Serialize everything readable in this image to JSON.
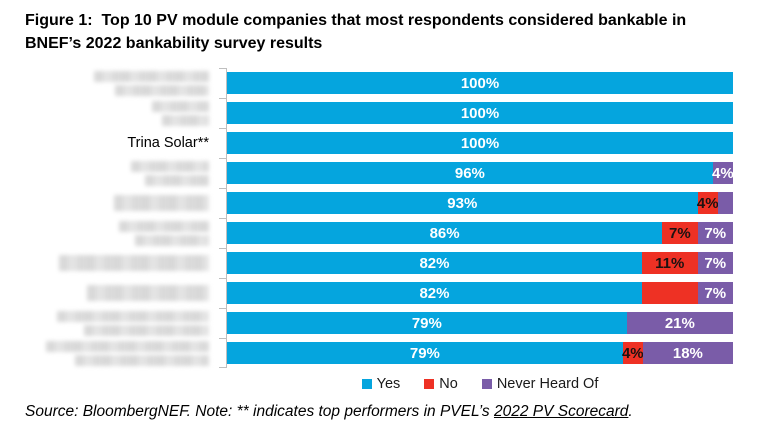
{
  "figure": {
    "title_line1": "Figure 1:  Top 10 PV module companies that most respondents considered bankable in",
    "title_line2": "BNEF’s 2022 bankability survey results"
  },
  "chart_data": {
    "type": "bar",
    "orientation": "horizontal",
    "stacked": true,
    "unit": "percent",
    "x_range": [
      0,
      100
    ],
    "grid": false,
    "legend_position": "bottom",
    "series_names": [
      "Yes",
      "No",
      "Never Heard Of"
    ],
    "colors": {
      "yes": "#05A5DE",
      "no": "#EE3124",
      "nho": "#7A5CA8"
    },
    "legend": [
      {
        "key": "yes",
        "label": "Yes"
      },
      {
        "key": "no",
        "label": "No"
      },
      {
        "key": "nho",
        "label": "Never Heard Of"
      }
    ],
    "rows": [
      {
        "company": "",
        "redacted": true,
        "redact_width": 115,
        "redact_lines": 2,
        "segments": [
          {
            "key": "yes",
            "value": 100,
            "label": "100%"
          }
        ]
      },
      {
        "company": "",
        "redacted": true,
        "redact_width": 57,
        "redact_lines": 2,
        "segments": [
          {
            "key": "yes",
            "value": 100,
            "label": "100%"
          }
        ]
      },
      {
        "company": "Trina Solar**",
        "redacted": false,
        "segments": [
          {
            "key": "yes",
            "value": 100,
            "label": "100%"
          }
        ]
      },
      {
        "company": "",
        "redacted": true,
        "redact_width": 78,
        "redact_lines": 2,
        "segments": [
          {
            "key": "yes",
            "value": 96,
            "label": "96%"
          },
          {
            "key": "nho",
            "value": 4,
            "label": "4%"
          }
        ]
      },
      {
        "company": "",
        "redacted": true,
        "redact_width": 95,
        "redact_lines": 1,
        "segments": [
          {
            "key": "yes",
            "value": 93,
            "label": "93%"
          },
          {
            "key": "no",
            "value": 4,
            "label": "4%"
          },
          {
            "key": "nho",
            "value": 3,
            "label": ""
          }
        ]
      },
      {
        "company": "",
        "redacted": true,
        "redact_width": 90,
        "redact_lines": 2,
        "segments": [
          {
            "key": "yes",
            "value": 86,
            "label": "86%"
          },
          {
            "key": "no",
            "value": 7,
            "label": "7%"
          },
          {
            "key": "nho",
            "value": 7,
            "label": "7%"
          }
        ]
      },
      {
        "company": "",
        "redacted": true,
        "redact_width": 150,
        "redact_lines": 1,
        "segments": [
          {
            "key": "yes",
            "value": 82,
            "label": "82%"
          },
          {
            "key": "no",
            "value": 11,
            "label": "11%"
          },
          {
            "key": "nho",
            "value": 7,
            "label": "7%"
          }
        ]
      },
      {
        "company": "",
        "redacted": true,
        "redact_width": 122,
        "redact_lines": 1,
        "segments": [
          {
            "key": "yes",
            "value": 82,
            "label": "82%"
          },
          {
            "key": "no",
            "value": 11,
            "label": ""
          },
          {
            "key": "nho",
            "value": 7,
            "label": "7%"
          }
        ]
      },
      {
        "company": "",
        "redacted": true,
        "redact_width": 152,
        "redact_lines": 2,
        "segments": [
          {
            "key": "yes",
            "value": 79,
            "label": "79%"
          },
          {
            "key": "nho",
            "value": 21,
            "label": "21%"
          }
        ]
      },
      {
        "company": "",
        "redacted": true,
        "redact_width": 163,
        "redact_lines": 2,
        "segments": [
          {
            "key": "yes",
            "value": 79,
            "label": "79%"
          },
          {
            "key": "no",
            "value": 4,
            "label": "4%"
          },
          {
            "key": "nho",
            "value": 18,
            "label": "18%"
          }
        ]
      }
    ]
  },
  "source_note": {
    "prefix": "Source: BloombergNEF. Note: ** indicates top performers in PVEL’s ",
    "link": "2022 PV Scorecard",
    "suffix": "."
  }
}
